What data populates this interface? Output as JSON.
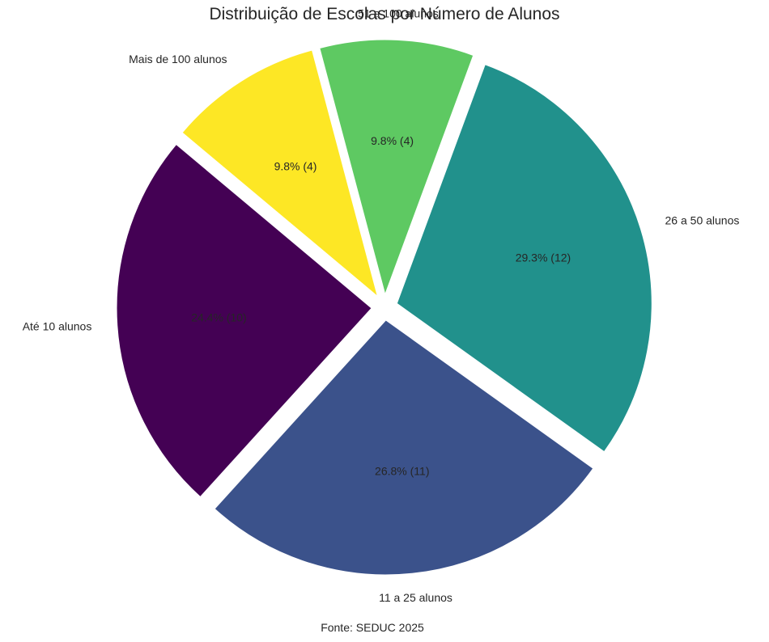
{
  "chart_data": {
    "type": "pie",
    "title": "Distribuição de Escolas por Número de Alunos",
    "categories": [
      "Até 10 alunos",
      "11 a 25 alunos",
      "26 a 50 alunos",
      "51 a 100 alunos",
      "Mais de 100 alunos"
    ],
    "values": [
      10,
      11,
      12,
      4,
      4
    ],
    "pct_labels": [
      "24.4% (10)",
      "26.8% (11)",
      "29.3% (12)",
      "9.8% (4)",
      "9.8% (4)"
    ],
    "colors": [
      "#440154",
      "#3b528b",
      "#21918c",
      "#5ec962",
      "#fde725"
    ],
    "source": "Fonte: SEDUC 2025"
  }
}
